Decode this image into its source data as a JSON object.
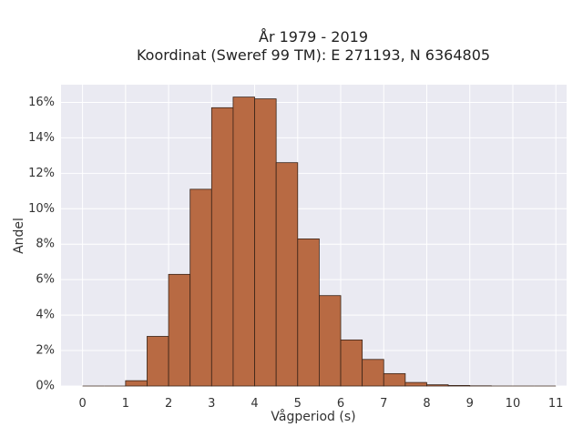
{
  "chart_data": {
    "type": "bar",
    "title": "År 1979 - 2019",
    "subtitle": "Koordinat (Sweref 99 TM): E 271193, N 6364805",
    "xlabel": "Vågperiod (s)",
    "ylabel": "Andel",
    "bin_width": 0.5,
    "bin_starts": [
      0,
      0.5,
      1,
      1.5,
      2,
      2.5,
      3,
      3.5,
      4,
      4.5,
      5,
      5.5,
      6,
      6.5,
      7,
      7.5,
      8,
      8.5,
      9,
      9.5,
      10,
      10.5
    ],
    "values": [
      0.0,
      0.0,
      0.3,
      2.8,
      6.3,
      11.1,
      15.7,
      16.3,
      16.2,
      12.6,
      8.3,
      5.1,
      2.6,
      1.5,
      0.7,
      0.2,
      0.07,
      0.03,
      0.01,
      0.0,
      0.0,
      0.0
    ],
    "value_unit": "%",
    "xlim": [
      -0.5,
      11.25
    ],
    "ylim": [
      0,
      17.0
    ],
    "x_ticks": [
      0,
      1,
      2,
      3,
      4,
      5,
      6,
      7,
      8,
      9,
      10,
      11
    ],
    "x_tick_labels": [
      "0",
      "1",
      "2",
      "3",
      "4",
      "5",
      "6",
      "7",
      "8",
      "9",
      "10",
      "11"
    ],
    "y_ticks": [
      0,
      2,
      4,
      6,
      8,
      10,
      12,
      14,
      16
    ],
    "y_tick_labels": [
      "0%",
      "2%",
      "4%",
      "6%",
      "8%",
      "10%",
      "12%",
      "14%",
      "16%"
    ],
    "grid": true,
    "colors": {
      "bar_fill": "#b86a43",
      "bar_edge": "#3a2418",
      "plot_background": "#eaeaf2",
      "grid": "#ffffff"
    }
  }
}
